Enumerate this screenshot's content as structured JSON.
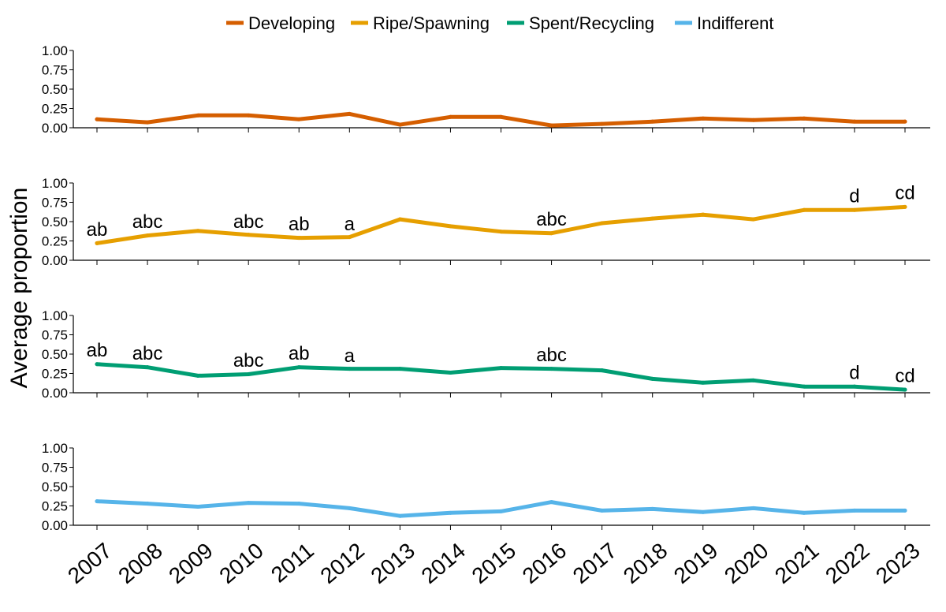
{
  "chart_data": {
    "type": "line",
    "title": "",
    "xlabel": "",
    "ylabel": "Average proportion",
    "legend_position": "top",
    "grid": false,
    "x": [
      "2007",
      "2008",
      "2009",
      "2010",
      "2011",
      "2012",
      "2013",
      "2014",
      "2015",
      "2016",
      "2017",
      "2018",
      "2019",
      "2020",
      "2021",
      "2022",
      "2023"
    ],
    "ylim": [
      0,
      1
    ],
    "yticks": [
      "0.00",
      "0.25",
      "0.50",
      "0.75",
      "1.00"
    ],
    "series": [
      {
        "name": "Developing",
        "color": "#D55E00",
        "values": [
          0.11,
          0.07,
          0.16,
          0.16,
          0.11,
          0.18,
          0.04,
          0.14,
          0.14,
          0.03,
          0.05,
          0.08,
          0.12,
          0.1,
          0.12,
          0.08,
          0.08
        ],
        "annotations": []
      },
      {
        "name": "Ripe/Spawning",
        "color": "#E69F00",
        "values": [
          0.22,
          0.32,
          0.38,
          0.33,
          0.29,
          0.3,
          0.53,
          0.44,
          0.37,
          0.35,
          0.48,
          0.54,
          0.59,
          0.53,
          0.65,
          0.65,
          0.69
        ],
        "annotations": [
          {
            "x": "2007",
            "text": "ab",
            "y": 0.4
          },
          {
            "x": "2008",
            "text": "abc",
            "y": 0.5
          },
          {
            "x": "2010",
            "text": "abc",
            "y": 0.5
          },
          {
            "x": "2011",
            "text": "ab",
            "y": 0.47
          },
          {
            "x": "2012",
            "text": "a",
            "y": 0.47
          },
          {
            "x": "2016",
            "text": "abc",
            "y": 0.53
          },
          {
            "x": "2022",
            "text": "d",
            "y": 0.83
          },
          {
            "x": "2023",
            "text": "cd",
            "y": 0.87
          }
        ]
      },
      {
        "name": "Spent/Recycling",
        "color": "#009E73",
        "values": [
          0.37,
          0.33,
          0.22,
          0.24,
          0.33,
          0.31,
          0.31,
          0.26,
          0.32,
          0.31,
          0.29,
          0.18,
          0.13,
          0.16,
          0.08,
          0.08,
          0.04
        ],
        "annotations": [
          {
            "x": "2007",
            "text": "ab",
            "y": 0.55
          },
          {
            "x": "2008",
            "text": "abc",
            "y": 0.51
          },
          {
            "x": "2010",
            "text": "abc",
            "y": 0.42
          },
          {
            "x": "2011",
            "text": "ab",
            "y": 0.51
          },
          {
            "x": "2012",
            "text": "a",
            "y": 0.48
          },
          {
            "x": "2016",
            "text": "abc",
            "y": 0.49
          },
          {
            "x": "2022",
            "text": "d",
            "y": 0.26
          },
          {
            "x": "2023",
            "text": "cd",
            "y": 0.22
          }
        ]
      },
      {
        "name": "Indifferent",
        "color": "#56B4E9",
        "values": [
          0.31,
          0.28,
          0.24,
          0.29,
          0.28,
          0.22,
          0.12,
          0.16,
          0.18,
          0.3,
          0.19,
          0.21,
          0.17,
          0.22,
          0.16,
          0.19,
          0.19
        ],
        "annotations": []
      }
    ]
  }
}
